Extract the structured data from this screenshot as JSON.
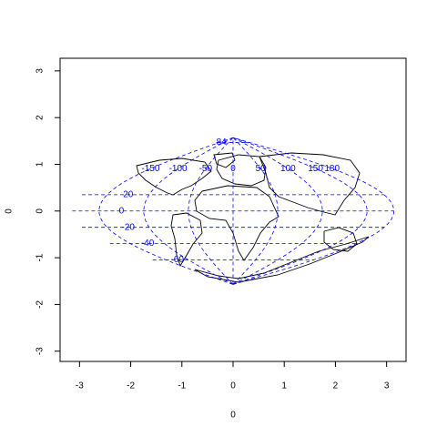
{
  "chart_data": {
    "type": "map",
    "projection": "sinusoidal",
    "x_label": "0",
    "y_label": "0",
    "xlim": [
      -3.38,
      3.38
    ],
    "ylim": [
      -3.22,
      3.27
    ],
    "xticks": [
      -3,
      -2,
      -1,
      0,
      1,
      2,
      3
    ],
    "yticks": [
      -3,
      -2,
      -1,
      0,
      1,
      2,
      3
    ],
    "parallels": [
      84,
      20,
      0,
      -20,
      -40,
      -60
    ],
    "meridians": [
      -150,
      -100,
      -50,
      0,
      50,
      100,
      150,
      180
    ],
    "graticule_color": "#0000ff"
  }
}
